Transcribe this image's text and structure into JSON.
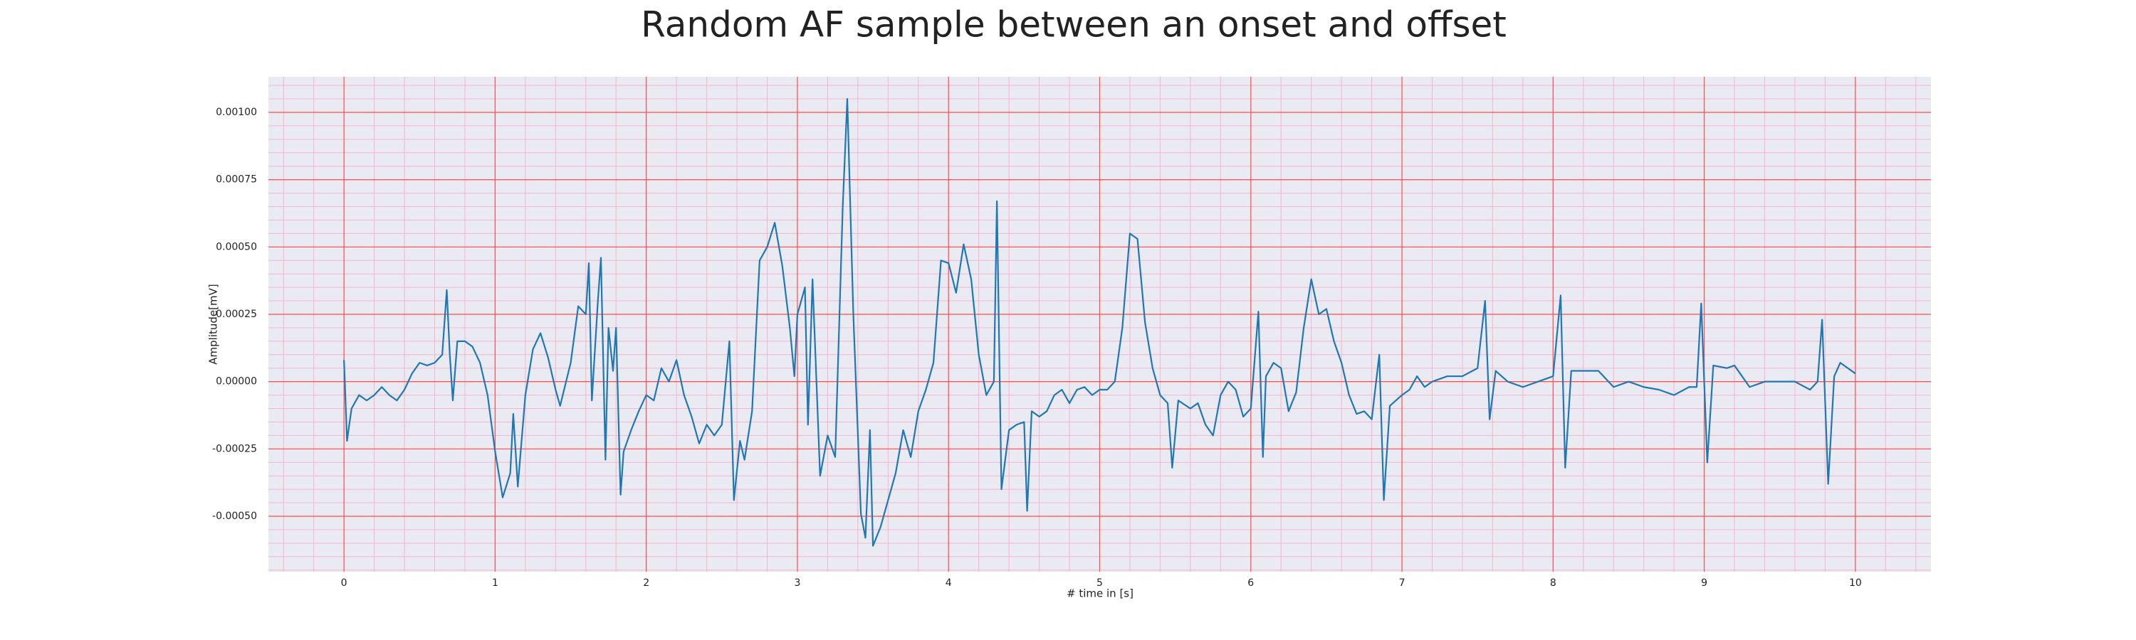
{
  "chart_data": {
    "type": "line",
    "title": "Random AF sample between an onset and offset",
    "xlabel": "# time in [s]",
    "ylabel": "Amplitude[mV]",
    "xlim": [
      -0.5,
      10.5
    ],
    "xticks": [
      0,
      1,
      2,
      3,
      4,
      5,
      6,
      7,
      8,
      9,
      10
    ],
    "ylim": [
      -0.000706,
      0.001132
    ],
    "yticks": [
      {
        "value": -0.0005,
        "label": "-0.00050"
      },
      {
        "value": -0.00025,
        "label": "-0.00025"
      },
      {
        "value": 0,
        "label": "0.00000"
      },
      {
        "value": 0.00025,
        "label": "0.00025"
      },
      {
        "value": 0.0005,
        "label": "0.00050"
      },
      {
        "value": 0.00075,
        "label": "0.00075"
      },
      {
        "value": 0.001,
        "label": "0.00100"
      }
    ],
    "grid": true,
    "minor_grid_divisions": 5,
    "background": "#eaeaf2",
    "grid_color": "#ff4d4d",
    "minor_grid_color": "#f4b6c8",
    "series": [
      {
        "color": "#1f77b4",
        "x": [
          0,
          0.02,
          0.05,
          0.1,
          0.15,
          0.2,
          0.25,
          0.3,
          0.35,
          0.4,
          0.45,
          0.5,
          0.55,
          0.6,
          0.65,
          0.68,
          0.7,
          0.72,
          0.75,
          0.8,
          0.85,
          0.9,
          0.95,
          1.0,
          1.05,
          1.1,
          1.12,
          1.15,
          1.2,
          1.25,
          1.3,
          1.35,
          1.4,
          1.43,
          1.5,
          1.55,
          1.6,
          1.62,
          1.64,
          1.68,
          1.7,
          1.73,
          1.75,
          1.78,
          1.8,
          1.83,
          1.85,
          1.9,
          1.95,
          2.0,
          2.05,
          2.1,
          2.15,
          2.2,
          2.25,
          2.3,
          2.35,
          2.4,
          2.45,
          2.5,
          2.55,
          2.58,
          2.62,
          2.65,
          2.7,
          2.75,
          2.8,
          2.85,
          2.9,
          2.95,
          2.98,
          3.0,
          3.05,
          3.07,
          3.1,
          3.15,
          3.2,
          3.25,
          3.3,
          3.33,
          3.37,
          3.42,
          3.45,
          3.48,
          3.5,
          3.55,
          3.6,
          3.65,
          3.7,
          3.75,
          3.8,
          3.85,
          3.9,
          3.95,
          4.0,
          4.05,
          4.1,
          4.15,
          4.2,
          4.25,
          4.3,
          4.32,
          4.35,
          4.4,
          4.45,
          4.5,
          4.52,
          4.55,
          4.6,
          4.65,
          4.7,
          4.75,
          4.8,
          4.85,
          4.9,
          4.95,
          5.0,
          5.05,
          5.1,
          5.15,
          5.2,
          5.25,
          5.3,
          5.35,
          5.4,
          5.45,
          5.48,
          5.52,
          5.6,
          5.65,
          5.7,
          5.75,
          5.8,
          5.85,
          5.9,
          5.95,
          6.0,
          6.05,
          6.08,
          6.1,
          6.15,
          6.2,
          6.25,
          6.3,
          6.35,
          6.4,
          6.45,
          6.5,
          6.55,
          6.6,
          6.65,
          6.7,
          6.75,
          6.8,
          6.85,
          6.88,
          6.92,
          7.0,
          7.05,
          7.1,
          7.15,
          7.2,
          7.3,
          7.4,
          7.5,
          7.55,
          7.58,
          7.62,
          7.7,
          7.8,
          7.9,
          8.0,
          8.05,
          8.08,
          8.12,
          8.2,
          8.3,
          8.4,
          8.5,
          8.6,
          8.7,
          8.8,
          8.9,
          8.95,
          8.98,
          9.02,
          9.06,
          9.15,
          9.2,
          9.3,
          9.4,
          9.5,
          9.6,
          9.7,
          9.75,
          9.78,
          9.82,
          9.86,
          9.9,
          10.0
        ],
        "values": [
          8e-05,
          -0.00022,
          -0.0001,
          -5e-05,
          -7e-05,
          -5e-05,
          -2e-05,
          -5e-05,
          -7e-05,
          -3e-05,
          3e-05,
          7e-05,
          6e-05,
          7e-05,
          0.0001,
          0.00034,
          0.0001,
          -7e-05,
          0.00015,
          0.00015,
          0.00013,
          7e-05,
          -5e-05,
          -0.00026,
          -0.00043,
          -0.00034,
          -0.00012,
          -0.00039,
          -5e-05,
          0.00012,
          0.00018,
          9e-05,
          -3e-05,
          -9e-05,
          7e-05,
          0.00028,
          0.00025,
          0.00044,
          -7e-05,
          0.0003,
          0.00046,
          -0.00029,
          0.0002,
          4e-05,
          0.0002,
          -0.00042,
          -0.00026,
          -0.00018,
          -0.00011,
          -5e-05,
          -7e-05,
          5e-05,
          0,
          8e-05,
          -5e-05,
          -0.00013,
          -0.00023,
          -0.00016,
          -0.0002,
          -0.00016,
          0.00015,
          -0.00044,
          -0.00022,
          -0.00029,
          -0.00011,
          0.00045,
          0.0005,
          0.00059,
          0.00043,
          0.0002,
          2e-05,
          0.00025,
          0.00035,
          -0.00016,
          0.00038,
          -0.00035,
          -0.0002,
          -0.00028,
          0.00065,
          0.00105,
          0.00025,
          -0.00049,
          -0.00058,
          -0.00018,
          -0.00061,
          -0.00054,
          -0.00044,
          -0.00034,
          -0.00018,
          -0.00028,
          -0.00011,
          -3e-05,
          7e-05,
          0.00045,
          0.00044,
          0.00033,
          0.00051,
          0.00038,
          0.0001,
          -5e-05,
          0,
          0.00067,
          -0.0004,
          -0.00018,
          -0.00016,
          -0.00015,
          -0.00048,
          -0.00011,
          -0.00013,
          -0.00011,
          -5e-05,
          -3e-05,
          -8e-05,
          -3e-05,
          -2e-05,
          -5e-05,
          -3e-05,
          -3e-05,
          0,
          0.0002,
          0.00055,
          0.00053,
          0.00022,
          5e-05,
          -5e-05,
          -8e-05,
          -0.00032,
          -7e-05,
          -0.0001,
          -8e-05,
          -0.00016,
          -0.0002,
          -5e-05,
          0,
          -3e-05,
          -0.00013,
          -0.0001,
          0.00026,
          -0.00028,
          2e-05,
          7e-05,
          5e-05,
          -0.00011,
          -4e-05,
          0.0002,
          0.00038,
          0.00025,
          0.00027,
          0.00015,
          7e-05,
          -5e-05,
          -0.00012,
          -0.00011,
          -0.00014,
          0.0001,
          -0.00044,
          -9e-05,
          -5e-05,
          -3e-05,
          2e-05,
          -2e-05,
          0,
          2e-05,
          2e-05,
          5e-05,
          0.0003,
          -0.00014,
          4e-05,
          0,
          -2e-05,
          0,
          2e-05,
          0.00032,
          -0.00032,
          4e-05,
          4e-05,
          4e-05,
          -2e-05,
          0,
          -2e-05,
          -3e-05,
          -5e-05,
          -2e-05,
          -2e-05,
          0.00029,
          -0.0003,
          6e-05,
          5e-05,
          6e-05,
          -2e-05,
          0,
          0,
          0,
          -3e-05,
          0,
          0.00023,
          -0.00038,
          2e-05,
          7e-05,
          3e-05
        ]
      }
    ]
  }
}
